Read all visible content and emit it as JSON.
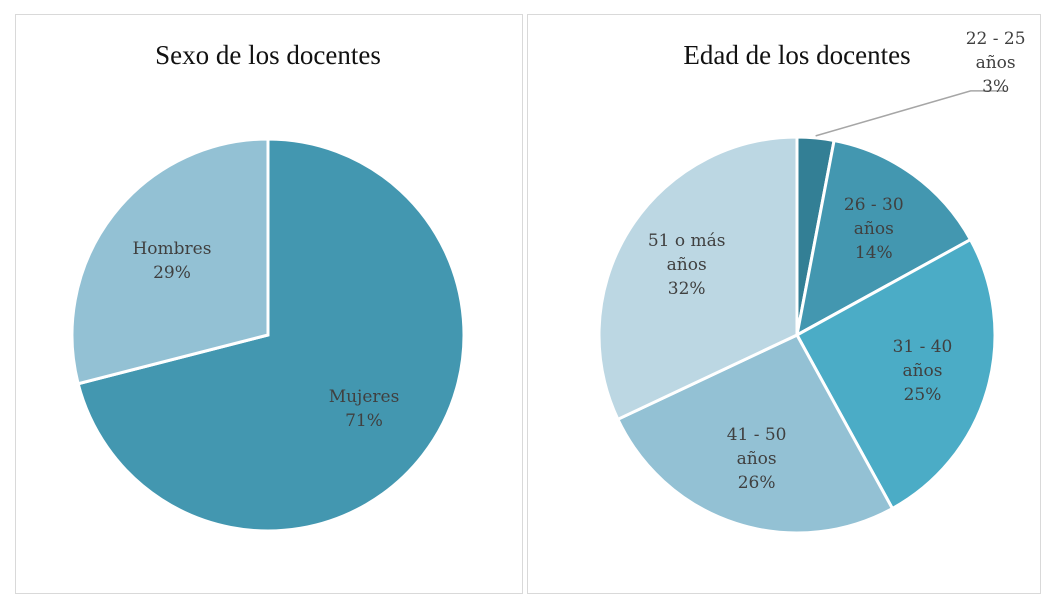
{
  "chart_data": [
    {
      "type": "pie",
      "title": "Sexo de los docentes",
      "categories": [
        "Mujeres",
        "Hombres"
      ],
      "values": [
        71,
        29
      ],
      "value_labels": [
        "71%",
        "29%"
      ],
      "colors": [
        "#4397b0",
        "#93c1d4"
      ]
    },
    {
      "type": "pie",
      "title": "Edad de los docentes",
      "categories": [
        "22 - 25 años",
        "26 - 30 años",
        "31 - 40 años",
        "41 - 50 años",
        "51 o más años"
      ],
      "values": [
        3,
        14,
        25,
        26,
        32
      ],
      "value_labels": [
        "3%",
        "14%",
        "25%",
        "26%",
        "32%"
      ],
      "colors": [
        "#337f95",
        "#4397b0",
        "#4bacc6",
        "#93c1d4",
        "#bcd7e3"
      ]
    }
  ]
}
